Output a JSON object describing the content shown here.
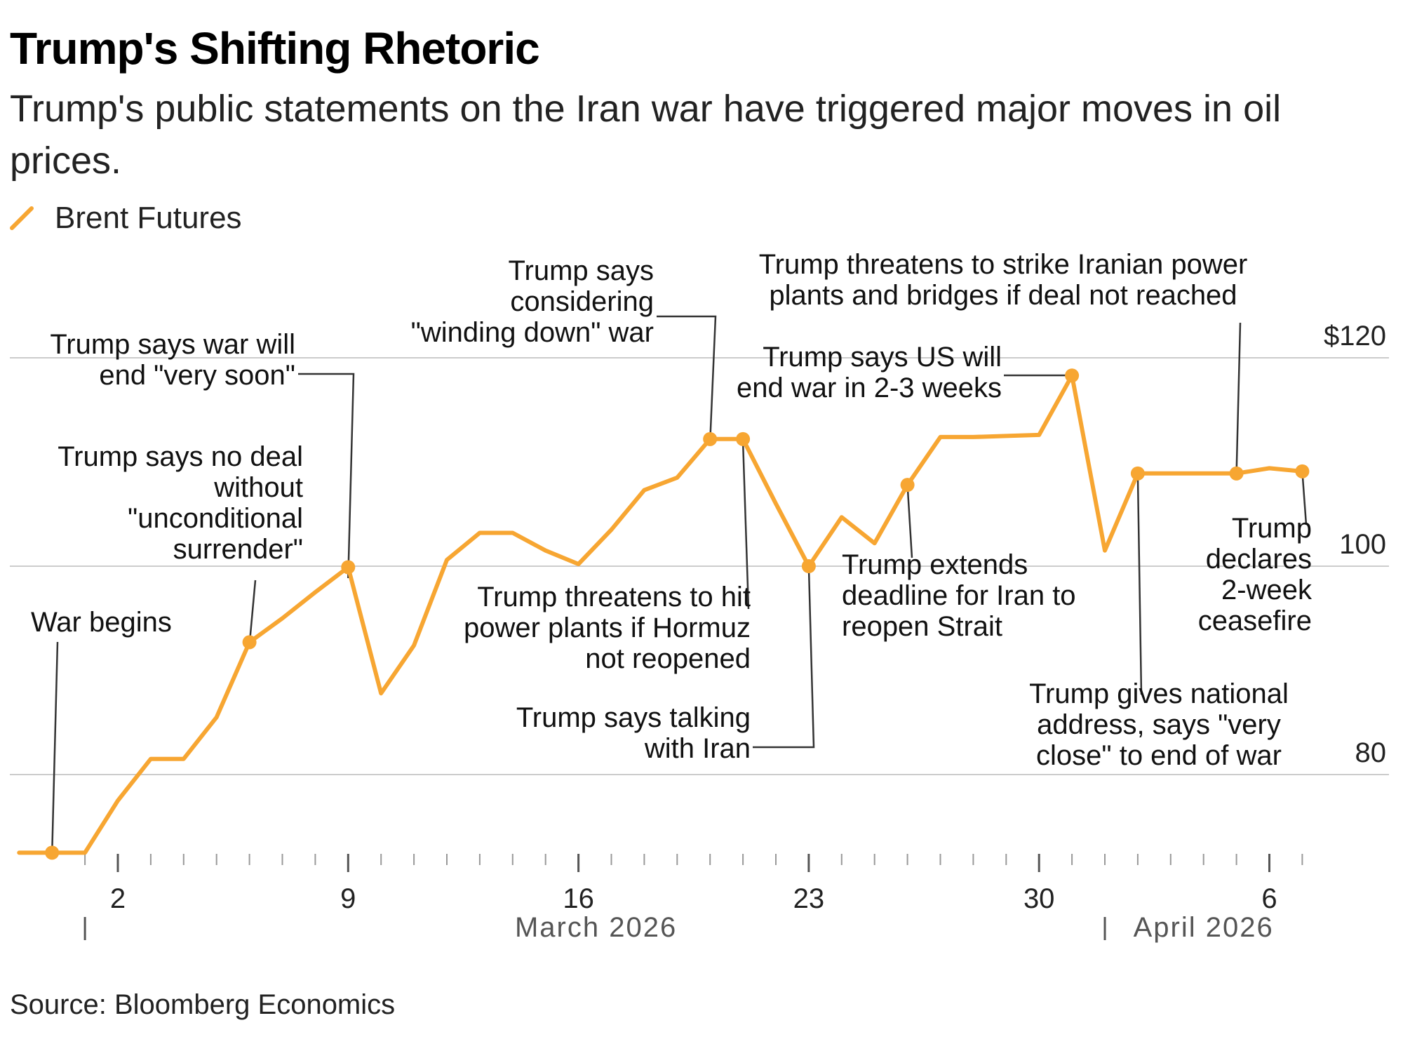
{
  "title": "Trump's Shifting Rhetoric",
  "subtitle": "Trump's public statements on the Iran war have triggered major moves in oil prices.",
  "legend": {
    "label": "Brent Futures"
  },
  "source": "Source: Bloomberg Economics",
  "colors": {
    "line": "#f7a632",
    "grid": "#cccccc",
    "text": "#222222",
    "axis_text": "#555555",
    "leader": "#333333"
  },
  "chart_data": {
    "type": "line",
    "title": "Trump's Shifting Rhetoric",
    "subtitle": "Trump's public statements on the Iran war have triggered major moves in oil prices.",
    "xlabel": "",
    "ylabel": "",
    "x_axis": {
      "tick_labels": [
        {
          "date": "2026-03-02",
          "label": "2"
        },
        {
          "date": "2026-03-09",
          "label": "9"
        },
        {
          "date": "2026-03-16",
          "label": "16"
        },
        {
          "date": "2026-03-23",
          "label": "23"
        },
        {
          "date": "2026-03-30",
          "label": "30"
        },
        {
          "date": "2026-04-06",
          "label": "6"
        }
      ],
      "month_labels": [
        {
          "date": "2026-03-16",
          "label": "March 2026"
        },
        {
          "date": "2026-04-04",
          "label": "April 2026"
        }
      ]
    },
    "y_axis": {
      "position": "right",
      "ylim": [
        72,
        122
      ],
      "ticks": [
        {
          "value": 120,
          "label": "$120"
        },
        {
          "value": 100,
          "label": "100"
        },
        {
          "value": 80,
          "label": "80"
        }
      ]
    },
    "grid": true,
    "legend_position": "top-left",
    "series": [
      {
        "name": "Brent Futures",
        "color": "#f7a632",
        "points": [
          {
            "date": "2026-02-27",
            "value": 72.5
          },
          {
            "date": "2026-02-28",
            "value": 72.5
          },
          {
            "date": "2026-03-01",
            "value": 72.5
          },
          {
            "date": "2026-03-02",
            "value": 77.5
          },
          {
            "date": "2026-03-03",
            "value": 81.5
          },
          {
            "date": "2026-03-04",
            "value": 81.5
          },
          {
            "date": "2026-03-05",
            "value": 85.5
          },
          {
            "date": "2026-03-06",
            "value": 92.7
          },
          {
            "date": "2026-03-07",
            "value": 95.0
          },
          {
            "date": "2026-03-08",
            "value": 97.5
          },
          {
            "date": "2026-03-09",
            "value": 99.9
          },
          {
            "date": "2026-03-10",
            "value": 87.8
          },
          {
            "date": "2026-03-11",
            "value": 92.4
          },
          {
            "date": "2026-03-12",
            "value": 100.6
          },
          {
            "date": "2026-03-13",
            "value": 103.2
          },
          {
            "date": "2026-03-14",
            "value": 103.2
          },
          {
            "date": "2026-03-15",
            "value": 101.5
          },
          {
            "date": "2026-03-16",
            "value": 100.2
          },
          {
            "date": "2026-03-17",
            "value": 103.5
          },
          {
            "date": "2026-03-18",
            "value": 107.3
          },
          {
            "date": "2026-03-19",
            "value": 108.5
          },
          {
            "date": "2026-03-20",
            "value": 112.2
          },
          {
            "date": "2026-03-21",
            "value": 112.2
          },
          {
            "date": "2026-03-22",
            "value": 106.0
          },
          {
            "date": "2026-03-23",
            "value": 100.0
          },
          {
            "date": "2026-03-24",
            "value": 104.7
          },
          {
            "date": "2026-03-25",
            "value": 102.2
          },
          {
            "date": "2026-03-26",
            "value": 107.8
          },
          {
            "date": "2026-03-27",
            "value": 112.4
          },
          {
            "date": "2026-03-28",
            "value": 112.4
          },
          {
            "date": "2026-03-29",
            "value": 112.5
          },
          {
            "date": "2026-03-30",
            "value": 112.6
          },
          {
            "date": "2026-03-31",
            "value": 118.3
          },
          {
            "date": "2026-04-01",
            "value": 101.5
          },
          {
            "date": "2026-04-02",
            "value": 108.9
          },
          {
            "date": "2026-04-03",
            "value": 108.9
          },
          {
            "date": "2026-04-04",
            "value": 108.9
          },
          {
            "date": "2026-04-05",
            "value": 108.9
          },
          {
            "date": "2026-04-06",
            "value": 109.4
          },
          {
            "date": "2026-04-07",
            "value": 109.1
          }
        ]
      }
    ],
    "annotations": [
      {
        "date": "2026-02-28",
        "lines": [
          "War begins"
        ]
      },
      {
        "date": "2026-03-06",
        "lines": [
          "Trump says no deal",
          "without",
          "\"unconditional",
          "surrender\""
        ]
      },
      {
        "date": "2026-03-09",
        "lines": [
          "Trump says war will",
          "end \"very soon\""
        ]
      },
      {
        "date": "2026-03-20",
        "lines": [
          "Trump says",
          "considering",
          "\"winding down\" war"
        ]
      },
      {
        "date": "2026-03-21",
        "lines": [
          "Trump threatens to hit",
          "power plants if Hormuz",
          "not reopened"
        ]
      },
      {
        "date": "2026-03-23",
        "lines": [
          "Trump says talking",
          "with Iran"
        ]
      },
      {
        "date": "2026-03-26",
        "lines": [
          "Trump extends",
          "deadline for Iran to",
          "reopen Strait"
        ]
      },
      {
        "date": "2026-03-31",
        "lines": [
          "Trump says US will",
          "end war in 2-3 weeks"
        ]
      },
      {
        "date": "2026-04-02",
        "lines": [
          "Trump gives national",
          "address, says \"very",
          "close\" to end of war"
        ]
      },
      {
        "date": "2026-04-05",
        "lines": [
          "Trump threatens to strike Iranian power",
          "plants and bridges if deal not reached"
        ]
      },
      {
        "date": "2026-04-07",
        "lines": [
          "Trump",
          "declares",
          "2-week",
          "ceasefire"
        ]
      }
    ]
  }
}
